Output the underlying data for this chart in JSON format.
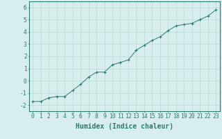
{
  "xlabel": "Humidex (Indice chaleur)",
  "ylabel": "",
  "x_values": [
    0,
    1,
    2,
    3,
    4,
    5,
    6,
    7,
    8,
    9,
    10,
    11,
    12,
    13,
    14,
    15,
    16,
    17,
    18,
    19,
    20,
    21,
    22,
    23
  ],
  "y_values": [
    -1.7,
    -1.7,
    -1.4,
    -1.3,
    -1.3,
    -0.8,
    -0.3,
    0.3,
    0.7,
    0.7,
    1.3,
    1.5,
    1.7,
    2.5,
    2.9,
    3.3,
    3.6,
    4.1,
    4.5,
    4.6,
    4.7,
    5.0,
    5.3,
    5.8
  ],
  "xlim": [
    -0.5,
    23.5
  ],
  "ylim": [
    -2.5,
    6.5
  ],
  "yticks": [
    -2,
    -1,
    0,
    1,
    2,
    3,
    4,
    5,
    6
  ],
  "xticks": [
    0,
    1,
    2,
    3,
    4,
    5,
    6,
    7,
    8,
    9,
    10,
    11,
    12,
    13,
    14,
    15,
    16,
    17,
    18,
    19,
    20,
    21,
    22,
    23
  ],
  "line_color": "#2a7a6f",
  "marker_color": "#2a7a6f",
  "bg_color": "#d8eeee",
  "grid_color": "#b8d8d4",
  "axis_color": "#2a7a6f",
  "tick_fontsize": 5.8,
  "xlabel_fontsize": 7.0
}
